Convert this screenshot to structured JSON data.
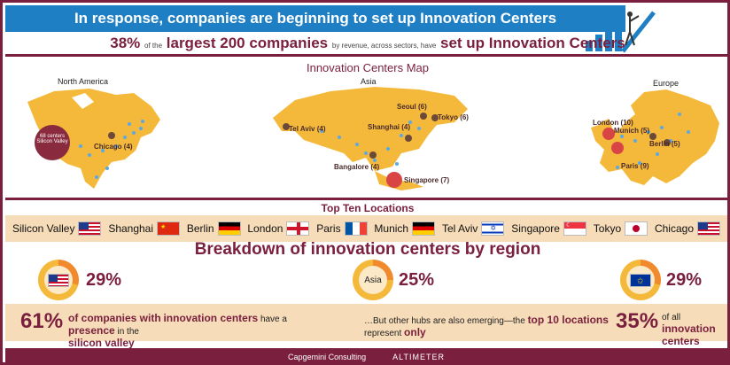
{
  "banner": {
    "title": "In response, companies are beginning to set up Innovation Centers"
  },
  "headline": {
    "pct": "38%",
    "pre": "of the",
    "strong1": "largest 200 companies",
    "small": "by revenue, across sectors, have",
    "strong2": "set up Innovation Centers"
  },
  "map": {
    "title": "Innovation Centers Map",
    "regions": {
      "north_america": "North America",
      "asia": "Asia",
      "europe": "Europe"
    },
    "cities": {
      "silicon_valley": "68 centers Silicon Valley",
      "chicago": "Chicago (4)",
      "seoul": "Seoul (6)",
      "tokyo": "Tokyo (6)",
      "tel_aviv": "Tel Aviv (4)",
      "shanghai": "Shanghai (4)",
      "bangalore": "Bangalore (4)",
      "singapore": "Singapore (7)",
      "london": "London (10)",
      "munich": "Munich (5)",
      "berlin": "Berlin (5)",
      "paris": "Paris (9)"
    }
  },
  "top10": {
    "title": "Top Ten Locations",
    "locations": [
      "Silicon Valley",
      "Shanghai",
      "Berlin",
      "London",
      "Paris",
      "Munich",
      "Tel Aviv",
      "Singapore",
      "Tokyo",
      "Chicago"
    ]
  },
  "breakdown": {
    "title": "Breakdown of innovation centers by region",
    "us": {
      "pct": "29%",
      "value": 29
    },
    "asia": {
      "label": "Asia",
      "pct": "25%",
      "value": 25
    },
    "eu": {
      "pct": "29%",
      "value": 29
    }
  },
  "bottom": {
    "left_big": "61%",
    "left_text_1": "of companies with",
    "left_text_2": "innovation centers",
    "left_text_3": "have a",
    "left_text_4": "presence",
    "left_text_5": "in the",
    "left_text_6": "silicon valley",
    "right_text_1": "…But other hubs are also emerging—the",
    "right_text_2": "top 10 locations",
    "right_text_3": "represent",
    "right_text_4": "only",
    "right_big": "35%",
    "right_text_5": "of all",
    "right_text_6": "innovation centers"
  },
  "footer": {
    "brand1": "Capgemini Consulting",
    "brand2": "ALTIMETER"
  },
  "colors": {
    "maroon": "#7a1f3d",
    "blue": "#1f7fc4",
    "land": "#f4b93a",
    "orange": "#f08a2c"
  }
}
